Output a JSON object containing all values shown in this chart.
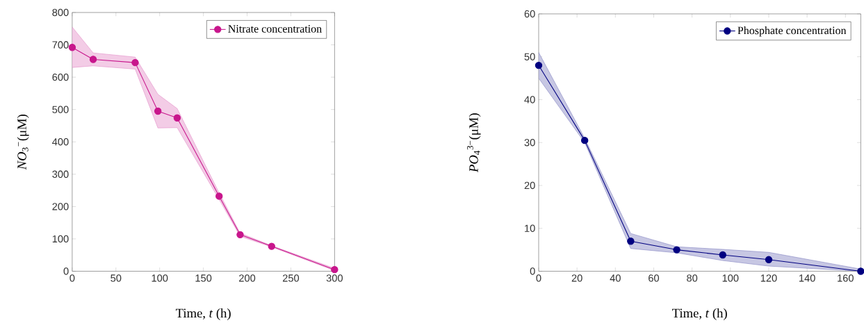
{
  "chart_data": [
    {
      "type": "line",
      "xlabel": "Time, *t* (h)",
      "ylabel": "*NO*$_{3}$$^{−}$(μM)",
      "x": [
        0,
        24,
        72,
        98,
        120,
        168,
        192,
        228,
        300
      ],
      "series": [
        {
          "name": "Nitrate concentration",
          "color": "#c8168c",
          "values": [
            692,
            655,
            645,
            495,
            474,
            232,
            113,
            77,
            5
          ],
          "lower": [
            630,
            635,
            625,
            443,
            444,
            222,
            108,
            75,
            2
          ],
          "upper": [
            755,
            675,
            662,
            547,
            503,
            242,
            118,
            79,
            9
          ]
        }
      ],
      "xlim": [
        0,
        300
      ],
      "xticks": [
        0,
        50,
        100,
        150,
        200,
        250,
        300
      ],
      "ylim": [
        0,
        800
      ],
      "yticks": [
        0,
        100,
        200,
        300,
        400,
        500,
        600,
        700,
        800
      ],
      "grid": false,
      "legend": "top right",
      "marker": "circle",
      "line_style": "solid"
    },
    {
      "type": "line",
      "xlabel": "Time, *t* (h)",
      "ylabel": "*PO*$_{4}$$^{3−}$(μM)",
      "x": [
        0,
        24,
        48,
        72,
        96,
        120,
        168
      ],
      "series": [
        {
          "name": "Phosphate concentration",
          "color": "#000080",
          "values": [
            48,
            30.5,
            7,
            5,
            3.8,
            2.7,
            0
          ],
          "lower": [
            45,
            30,
            5.3,
            4.3,
            2.5,
            1.2,
            0
          ],
          "upper": [
            51,
            31,
            8.8,
            5.7,
            5.1,
            4.4,
            0.5
          ]
        }
      ],
      "xlim": [
        0,
        168
      ],
      "xticks": [
        0,
        20,
        40,
        60,
        80,
        100,
        120,
        140,
        160
      ],
      "ylim": [
        0,
        60
      ],
      "yticks": [
        0,
        10,
        20,
        30,
        40,
        50,
        60
      ],
      "grid": false,
      "legend": "top right",
      "marker": "circle",
      "line_style": "solid"
    }
  ]
}
